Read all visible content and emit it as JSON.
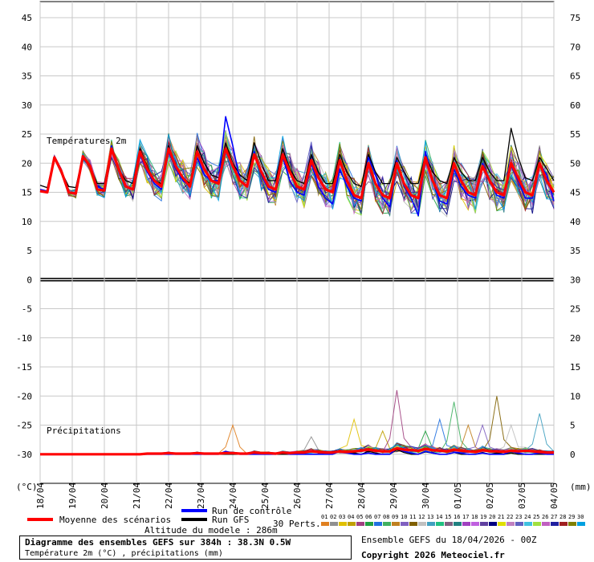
{
  "chart_data": {
    "type": "line",
    "title": "Diagramme des ensembles GEFS sur 384h : 38.3N 0.5W",
    "subtitle": "Température 2m (°C) , précipitations (mm)",
    "left_axis": {
      "unit": "(°C)",
      "range": [
        -35,
        45
      ],
      "ticks": [
        45,
        40,
        35,
        30,
        25,
        20,
        15,
        10,
        5,
        0,
        -5,
        -10,
        -15,
        -20,
        -25,
        -30
      ]
    },
    "right_axis": {
      "unit": "(mm)",
      "range": [
        -5,
        75
      ],
      "ticks": [
        75,
        70,
        65,
        60,
        55,
        50,
        45,
        40,
        35,
        30,
        25,
        20,
        15,
        10,
        5,
        0
      ]
    },
    "x_labels": [
      "18/04",
      "19/04",
      "20/04",
      "21/04",
      "22/04",
      "23/04",
      "24/04",
      "25/04",
      "26/04",
      "27/04",
      "28/04",
      "29/04",
      "30/04",
      "01/05",
      "02/05",
      "03/05",
      "04/05"
    ],
    "section_labels": {
      "temperature": "Températures 2m",
      "precipitation": "Précipitations"
    },
    "grid": true,
    "zero_line": 0,
    "temperature_mean": [
      15.2,
      15.0,
      21.0,
      18.5,
      15.0,
      14.8,
      21.2,
      19.5,
      15.5,
      15.3,
      22.5,
      19.0,
      16.0,
      15.5,
      22.0,
      19.0,
      17.0,
      16.0,
      22.5,
      19.5,
      17.5,
      16.0,
      22.0,
      19.0,
      17.0,
      16.5,
      22.5,
      19.5,
      17.0,
      16.0,
      21.5,
      18.5,
      16.0,
      15.5,
      21.5,
      18.5,
      16.0,
      15.5,
      20.5,
      17.5,
      15.5,
      15.0,
      20.5,
      17.0,
      14.5,
      14.0,
      20.0,
      16.5,
      14.5,
      14.0,
      20.0,
      16.5,
      14.5,
      14.0,
      21.0,
      17.0,
      14.5,
      14.0,
      20.0,
      17.0,
      15.0,
      14.5,
      19.5,
      17.0,
      15.0,
      14.5,
      20.0,
      17.5,
      15.0,
      14.5,
      20.0,
      17.0,
      15.0
    ],
    "temperature_control": [
      15.5,
      15.2,
      21.0,
      18.5,
      15.0,
      14.8,
      21.0,
      19.5,
      16.0,
      15.5,
      23.0,
      19.0,
      16.0,
      15.5,
      21.5,
      18.5,
      16.5,
      15.5,
      22.0,
      19.0,
      17.0,
      16.0,
      21.0,
      18.0,
      17.0,
      17.0,
      28.0,
      23.0,
      17.0,
      16.0,
      22.0,
      18.0,
      15.5,
      15.0,
      21.0,
      17.0,
      15.0,
      14.5,
      20.0,
      16.0,
      14.0,
      13.0,
      19.0,
      16.0,
      14.0,
      13.5,
      21.0,
      18.0,
      14.0,
      12.5,
      20.5,
      16.0,
      14.0,
      11.0,
      22.0,
      17.0,
      13.5,
      13.0,
      19.0,
      16.0,
      14.5,
      14.0,
      20.0,
      17.0,
      14.5,
      14.0,
      19.5,
      17.0,
      14.0,
      14.0,
      20.0,
      18.0,
      13.5
    ],
    "temperature_gfs": [
      16.2,
      15.8,
      21.0,
      18.5,
      16.0,
      15.8,
      21.2,
      19.5,
      16.5,
      16.5,
      22.5,
      19.0,
      17.0,
      16.5,
      22.5,
      19.5,
      17.0,
      16.5,
      23.0,
      19.5,
      17.5,
      16.5,
      23.0,
      20.0,
      18.0,
      17.5,
      23.5,
      20.0,
      18.0,
      17.0,
      23.5,
      20.0,
      17.0,
      17.0,
      22.5,
      19.0,
      17.0,
      16.5,
      21.5,
      18.5,
      16.5,
      16.5,
      21.5,
      18.5,
      16.5,
      16.0,
      21.5,
      18.5,
      16.5,
      16.5,
      21.0,
      18.5,
      16.5,
      16.5,
      21.5,
      18.5,
      17.0,
      16.5,
      21.0,
      18.5,
      17.0,
      17.0,
      21.0,
      18.5,
      17.0,
      17.0,
      26.0,
      21.0,
      17.5,
      17.0,
      21.0,
      19.0,
      17.0
    ],
    "precipitation_mean": [
      0,
      0,
      0,
      0,
      0,
      0,
      0,
      0,
      0,
      0,
      0,
      0,
      0,
      0,
      0,
      0.1,
      0.1,
      0.1,
      0.2,
      0.1,
      0.1,
      0.1,
      0.2,
      0.1,
      0.1,
      0.1,
      0.2,
      0.2,
      0.1,
      0.1,
      0.3,
      0.2,
      0.2,
      0.1,
      0.3,
      0.2,
      0.3,
      0.3,
      0.5,
      0.4,
      0.3,
      0.3,
      0.5,
      0.4,
      0.5,
      0.6,
      0.8,
      0.6,
      0.5,
      0.5,
      1.0,
      0.8,
      0.7,
      0.6,
      0.9,
      0.7,
      0.6,
      0.5,
      0.8,
      0.6,
      0.5,
      0.4,
      0.7,
      0.5,
      0.5,
      0.4,
      0.6,
      0.5,
      0.6,
      0.5,
      0.4,
      0.3,
      0.3
    ],
    "precipitation_control": [
      0,
      0,
      0,
      0,
      0,
      0,
      0,
      0,
      0,
      0,
      0,
      0,
      0,
      0,
      0,
      0,
      0,
      0,
      0,
      0,
      0,
      0,
      0,
      0,
      0,
      0,
      0.5,
      0.2,
      0,
      0,
      0,
      0,
      0,
      0,
      0.3,
      0,
      0,
      0,
      0,
      0,
      0,
      0,
      0.5,
      0.2,
      0,
      0,
      0.2,
      0,
      0,
      0,
      1.0,
      0.5,
      0.2,
      0,
      0.5,
      0.2,
      0,
      0,
      0.3,
      0.2,
      0,
      0,
      0.2,
      0,
      0,
      0,
      0.5,
      0.2,
      0,
      0,
      0.2,
      0,
      0
    ],
    "precipitation_gfs": [
      0,
      0,
      0,
      0,
      0,
      0,
      0,
      0,
      0,
      0,
      0,
      0,
      0,
      0,
      0,
      0,
      0,
      0,
      0,
      0,
      0,
      0,
      0,
      0,
      0,
      0,
      0,
      0,
      0,
      0,
      0,
      0,
      0,
      0,
      0,
      0,
      0.2,
      0,
      0,
      0,
      0,
      0,
      0.5,
      0.3,
      0.2,
      0,
      0.5,
      0.2,
      0,
      0,
      0.8,
      0.3,
      0,
      0,
      0.4,
      0.2,
      0,
      0,
      0.3,
      0,
      0,
      0,
      0.3,
      0,
      0.2,
      0,
      0.2,
      0,
      0,
      0,
      0,
      0,
      0
    ],
    "precipitation_member_peaks": [
      {
        "t": 27,
        "mm": 5
      },
      {
        "t": 38,
        "mm": 3
      },
      {
        "t": 44,
        "mm": 6
      },
      {
        "t": 48,
        "mm": 4
      },
      {
        "t": 50,
        "mm": 11
      },
      {
        "t": 54,
        "mm": 4
      },
      {
        "t": 56,
        "mm": 6
      },
      {
        "t": 58,
        "mm": 9
      },
      {
        "t": 60,
        "mm": 5
      },
      {
        "t": 62,
        "mm": 5
      },
      {
        "t": 64,
        "mm": 10
      },
      {
        "t": 66,
        "mm": 5
      },
      {
        "t": 70,
        "mm": 7
      }
    ],
    "members_count": 30
  },
  "legend": {
    "mean_label": "Moyenne des scénarios",
    "control_label": "Run de contrôle",
    "gfs_label": "Run GFS",
    "altitude_label": "Altitude du modele : 286m",
    "perts_label": "30 Perts.",
    "member_numbers": [
      "01",
      "02",
      "03",
      "04",
      "05",
      "06",
      "07",
      "08",
      "09",
      "10",
      "11",
      "12",
      "13",
      "14",
      "15",
      "16",
      "17",
      "18",
      "19",
      "20",
      "21",
      "22",
      "23",
      "24",
      "25",
      "26",
      "27",
      "28",
      "29",
      "30"
    ],
    "member_colors": [
      "#e08020",
      "#909090",
      "#e0c000",
      "#c0a000",
      "#a04080",
      "#20a040",
      "#2070e0",
      "#40b060",
      "#c08020",
      "#8060c0",
      "#806000",
      "#c0c0c0",
      "#40a0c0",
      "#20c080",
      "#806080",
      "#208080",
      "#a040c0",
      "#c060e0",
      "#6040a0",
      "#000080",
      "#e0e000",
      "#c080c0",
      "#6060c0",
      "#40c0e0",
      "#a0e040",
      "#c060c0",
      "#2020a0",
      "#a02020",
      "#808000",
      "#00a0e0"
    ],
    "colors": {
      "mean": "#ff0000",
      "control": "#0000ff",
      "gfs": "#000000"
    }
  },
  "footer": {
    "title": "Diagramme des ensembles GEFS sur 384h : 38.3N 0.5W",
    "subtitle": "Température 2m (°C) , précipitations (mm)",
    "run_info": "Ensemble GEFS du 18/04/2026 - 00Z",
    "copyright": "Copyright 2026 Meteociel.fr"
  }
}
